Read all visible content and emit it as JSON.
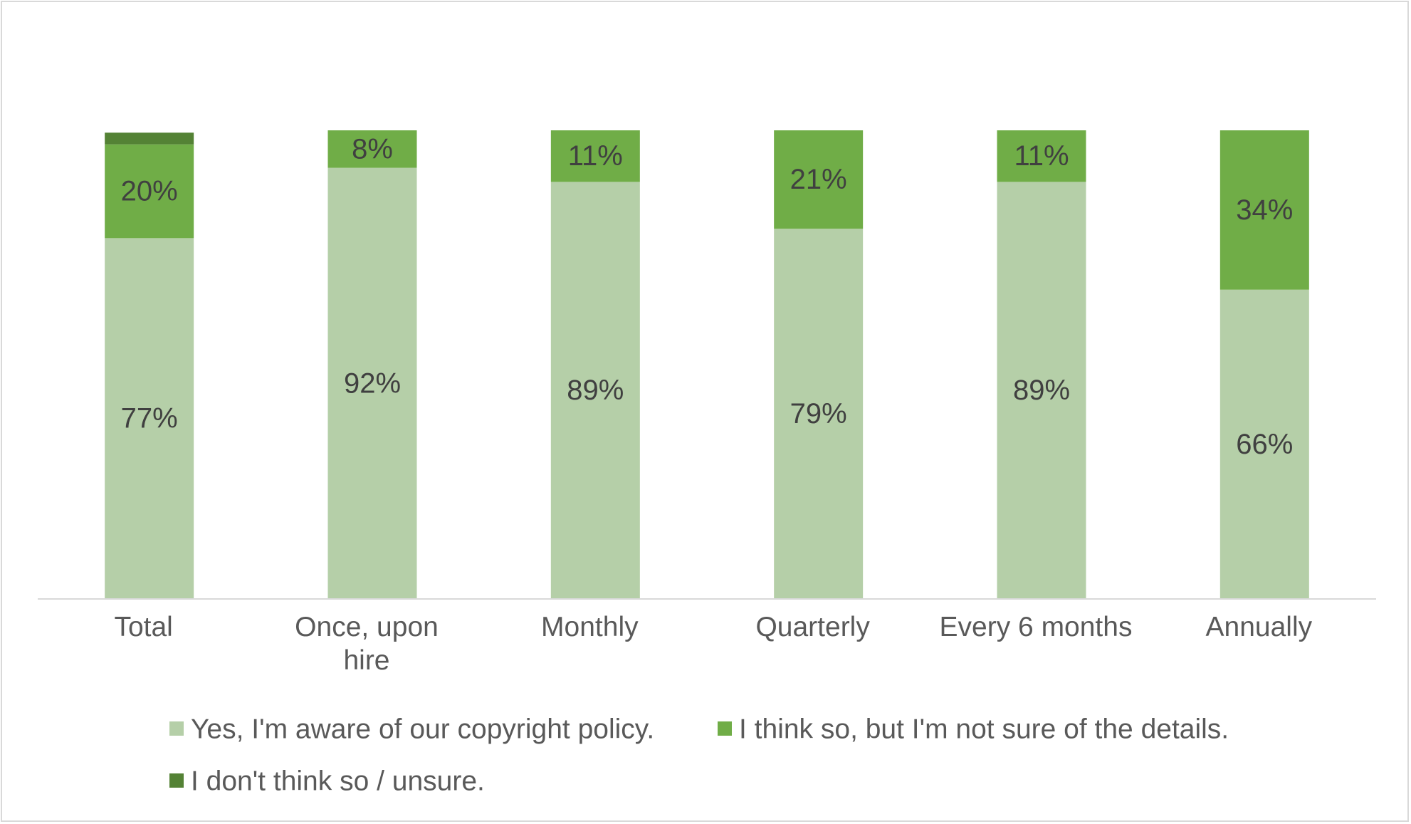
{
  "chart_data": {
    "type": "bar",
    "stacked": true,
    "title": "",
    "xlabel": "",
    "ylabel": "",
    "ylim": [
      0,
      100
    ],
    "grid": false,
    "legend_position": "bottom",
    "categories": [
      "Total",
      "Once, upon hire",
      "Monthly",
      "Quarterly",
      "Every 6 months",
      "Annually"
    ],
    "category_lines": [
      [
        "Total"
      ],
      [
        "Once, upon",
        "hire"
      ],
      [
        "Monthly"
      ],
      [
        "Quarterly"
      ],
      [
        "Every 6 months"
      ],
      [
        "Annually"
      ]
    ],
    "series": [
      {
        "name": "Yes, I'm aware of our copyright policy.",
        "color": "#b5cfa8",
        "values": [
          77,
          92,
          89,
          79,
          89,
          66
        ],
        "labels": [
          "77%",
          "92%",
          "89%",
          "79%",
          "89%",
          "66%"
        ]
      },
      {
        "name": "I think so, but I'm not sure of the details.",
        "color": "#70ad47",
        "values": [
          20,
          8,
          11,
          21,
          11,
          34
        ],
        "labels": [
          "20%",
          "8%",
          "11%",
          "21%",
          "11%",
          "34%"
        ]
      },
      {
        "name": "I don't think so / unsure.",
        "color": "#548235",
        "values": [
          2.5,
          0,
          0,
          0,
          0,
          0
        ],
        "labels": [
          "",
          "",
          "",
          "",
          "",
          ""
        ]
      }
    ]
  }
}
